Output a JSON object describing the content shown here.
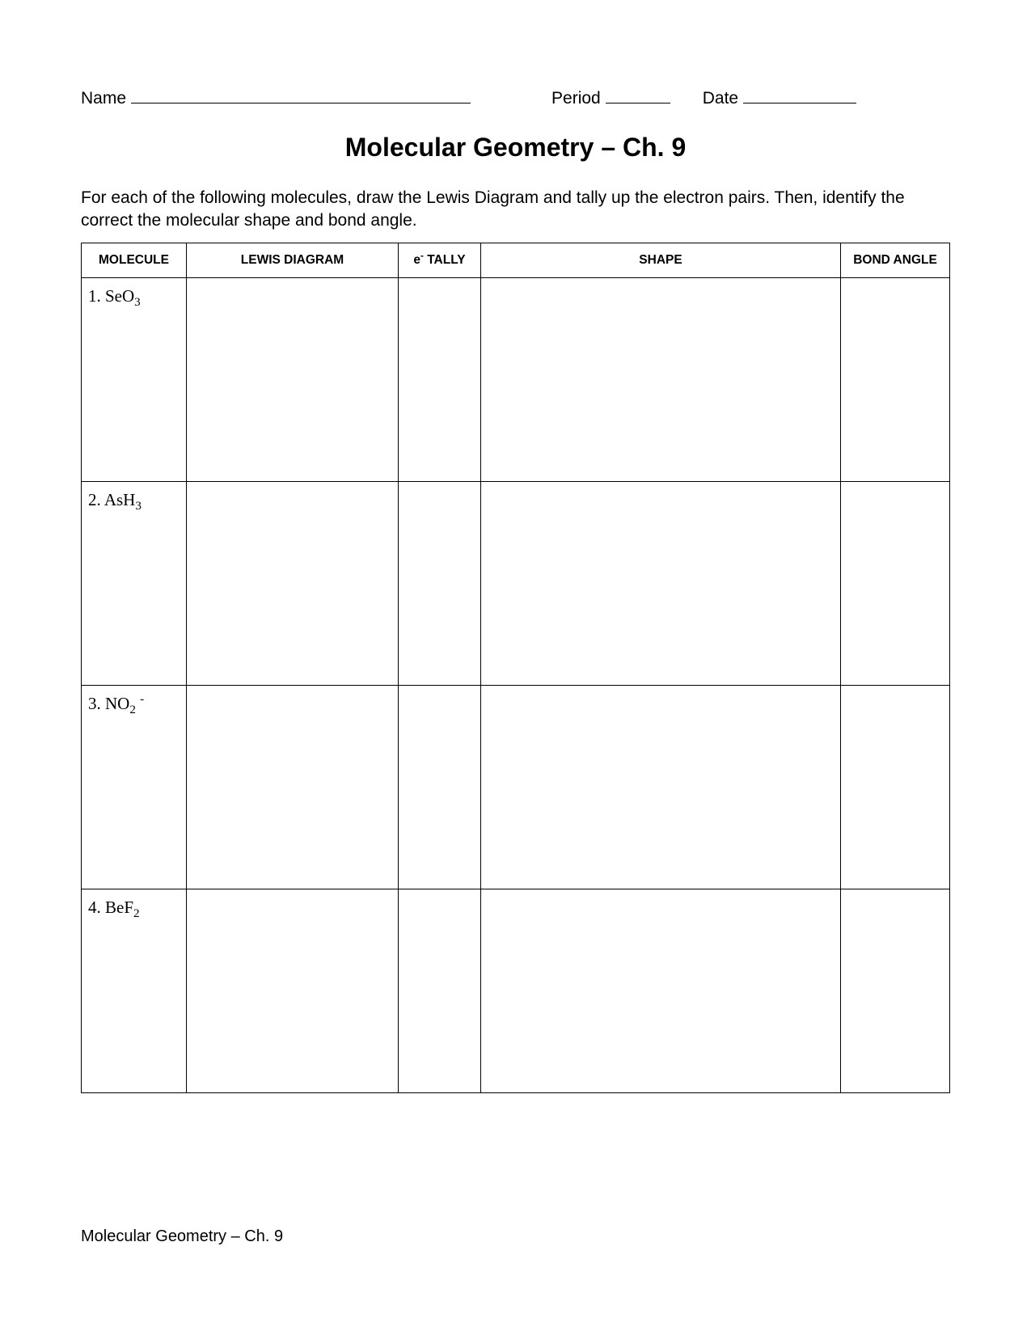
{
  "header": {
    "name_label": "Name",
    "period_label": "Period",
    "date_label": "Date"
  },
  "title": "Molecular Geometry – Ch. 9",
  "instructions": "For each of the following molecules, draw the Lewis Diagram and tally up the electron pairs. Then, identify the correct the molecular shape and bond angle.",
  "table": {
    "headers": {
      "molecule": "MOLECULE",
      "lewis": "LEWIS DIAGRAM",
      "tally_prefix": "e",
      "tally_sup": "-",
      "tally_suffix": " TALLY",
      "shape": "SHAPE",
      "angle": "BOND ANGLE"
    },
    "rows": [
      {
        "num": "1. ",
        "formula_parts": [
          {
            "t": "SeO"
          },
          {
            "sub": "3"
          }
        ]
      },
      {
        "num": "2. ",
        "formula_parts": [
          {
            "t": "AsH"
          },
          {
            "sub": "3"
          }
        ]
      },
      {
        "num": "3. ",
        "formula_parts": [
          {
            "t": "NO"
          },
          {
            "sub": "2"
          },
          {
            "t": " "
          },
          {
            "sup": "-"
          }
        ]
      },
      {
        "num": "4. ",
        "formula_parts": [
          {
            "t": "BeF"
          },
          {
            "sub": "2"
          }
        ]
      }
    ]
  },
  "footer": "Molecular Geometry – Ch. 9"
}
